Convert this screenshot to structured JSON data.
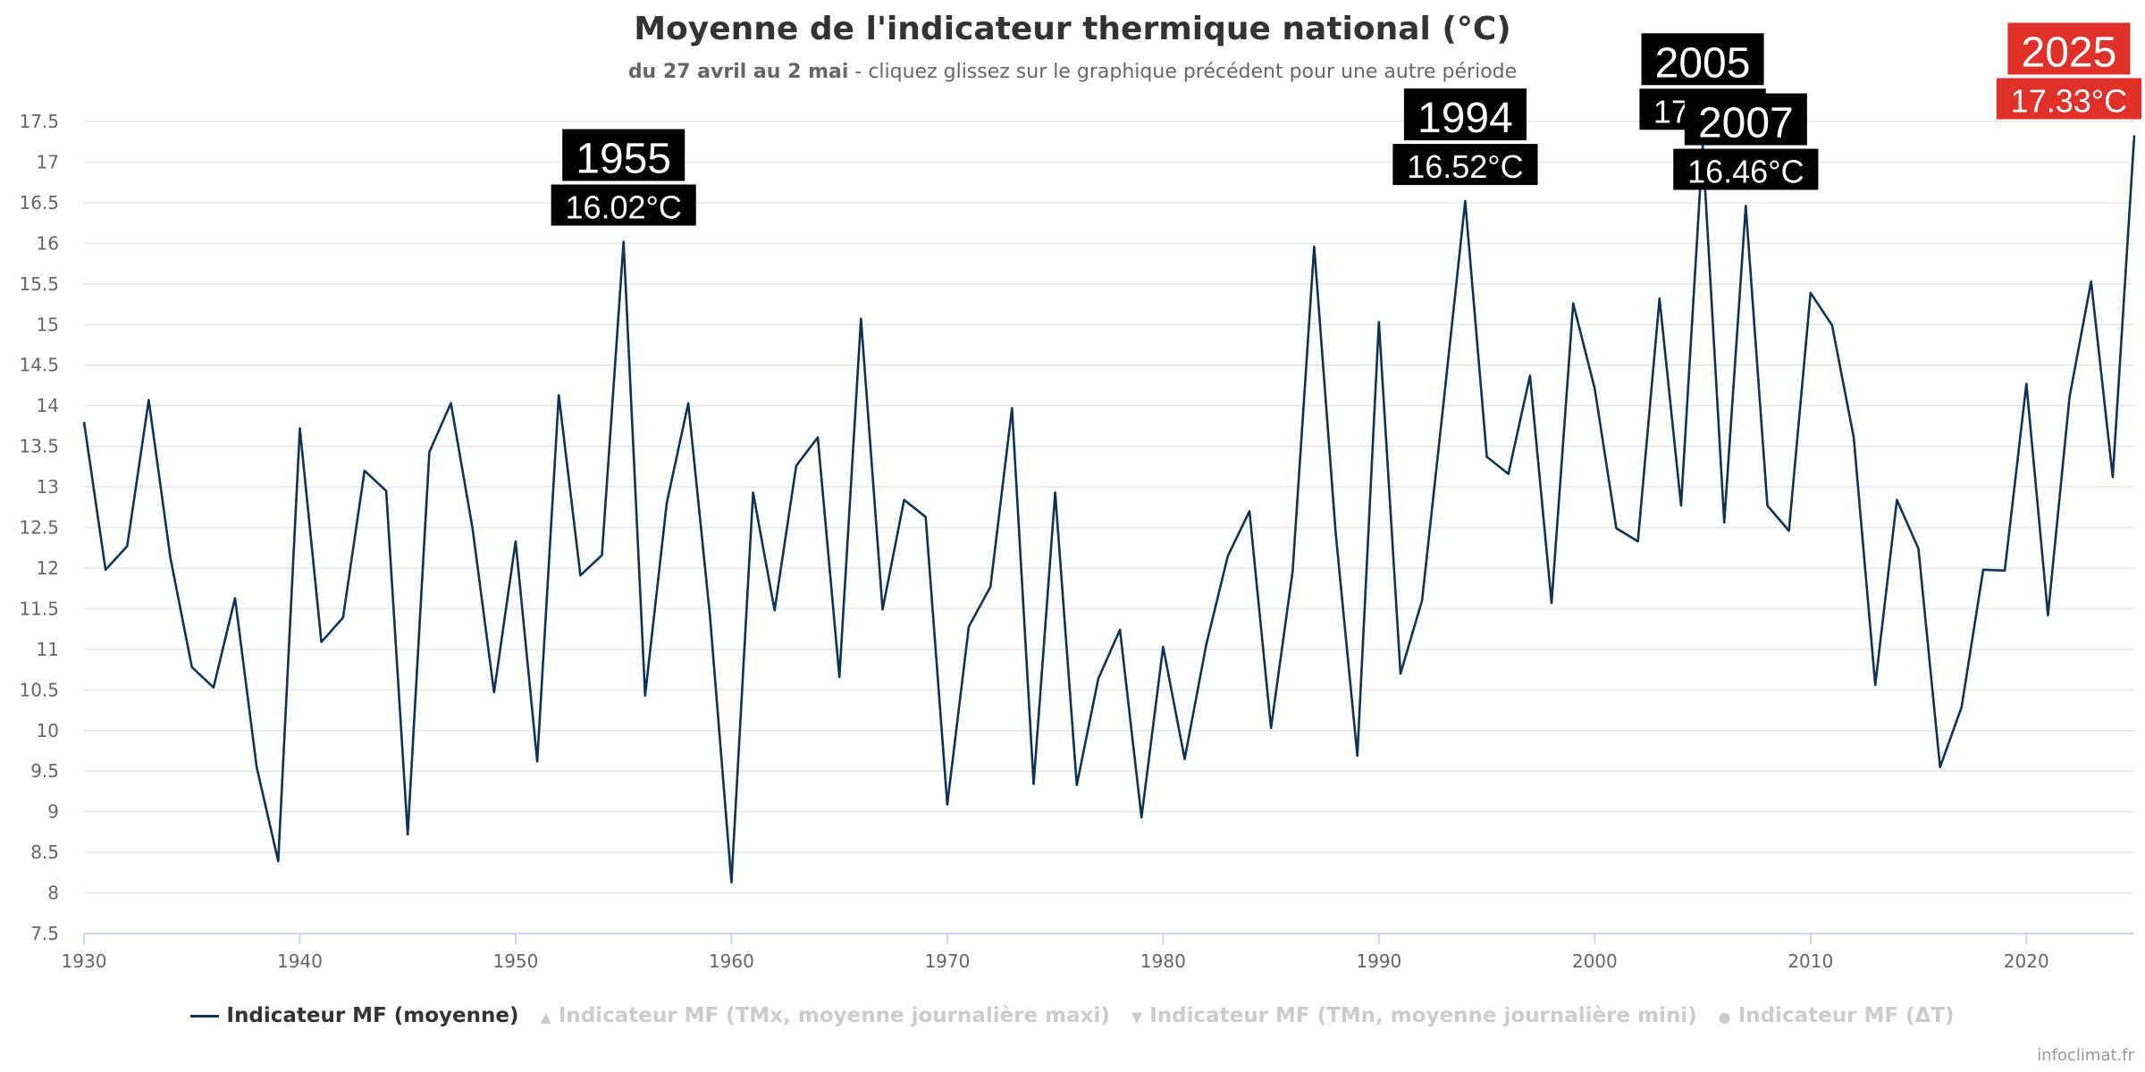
{
  "title": "Moyenne de l'indicateur thermique national (°C)",
  "subtitle": {
    "period": "du 27 avril au 2 mai",
    "hint": " - cliquez glissez sur le graphique précédent pour une autre période"
  },
  "legend": [
    {
      "label": "Indicateur MF (moyenne)",
      "symbol": "line-icon",
      "active": true
    },
    {
      "label": "Indicateur MF (TMx, moyenne journalière maxi)",
      "symbol": "triangle-up-icon",
      "active": false
    },
    {
      "label": "Indicateur MF (TMn, moyenne journalière mini)",
      "symbol": "triangle-down-icon",
      "active": false
    },
    {
      "label": "Indicateur MF (ΔT)",
      "symbol": "circle-icon",
      "active": false
    }
  ],
  "credits": "infoclimat.fr",
  "colors": {
    "series": "#0d3454",
    "annotation_bg": "#000000",
    "annotation_highlight_bg": "#e0302a",
    "annotation_text": "#ffffff",
    "grid": "#e6e6e6",
    "axis_text": "#666666"
  },
  "chart_data": {
    "type": "line",
    "x": [
      1930,
      1931,
      1932,
      1933,
      1934,
      1935,
      1936,
      1937,
      1938,
      1939,
      1940,
      1941,
      1942,
      1943,
      1944,
      1945,
      1946,
      1947,
      1948,
      1949,
      1950,
      1951,
      1952,
      1953,
      1954,
      1955,
      1956,
      1957,
      1958,
      1959,
      1960,
      1961,
      1962,
      1963,
      1964,
      1965,
      1966,
      1967,
      1968,
      1969,
      1970,
      1971,
      1972,
      1973,
      1974,
      1975,
      1976,
      1977,
      1978,
      1979,
      1980,
      1981,
      1982,
      1983,
      1984,
      1985,
      1986,
      1987,
      1988,
      1989,
      1990,
      1991,
      1992,
      1993,
      1994,
      1995,
      1996,
      1997,
      1998,
      1999,
      2000,
      2001,
      2002,
      2003,
      2004,
      2005,
      2006,
      2007,
      2008,
      2009,
      2010,
      2011,
      2012,
      2013,
      2014,
      2015,
      2016,
      2017,
      2018,
      2019,
      2020,
      2021,
      2022,
      2023,
      2024,
      2025
    ],
    "series": [
      {
        "name": "Indicateur MF (moyenne)",
        "values": [
          13.8,
          11.98,
          12.27,
          14.07,
          12.13,
          10.78,
          10.53,
          11.63,
          9.55,
          8.39,
          13.72,
          11.09,
          11.39,
          13.2,
          12.95,
          8.72,
          13.43,
          14.03,
          12.49,
          10.47,
          12.33,
          9.62,
          14.13,
          11.91,
          12.16,
          16.02,
          10.43,
          12.8,
          14.03,
          11.42,
          8.13,
          12.93,
          11.48,
          13.26,
          13.61,
          10.66,
          15.07,
          11.49,
          12.84,
          12.63,
          9.09,
          11.28,
          11.77,
          13.97,
          9.34,
          12.93,
          9.33,
          10.64,
          11.24,
          8.93,
          11.03,
          9.65,
          11.06,
          12.15,
          12.7,
          10.03,
          11.96,
          15.96,
          12.43,
          9.69,
          15.03,
          10.7,
          11.6,
          14.05,
          16.52,
          13.37,
          13.16,
          14.37,
          11.57,
          15.26,
          14.21,
          12.49,
          12.33,
          15.32,
          12.77,
          17.2,
          12.56,
          16.46,
          12.77,
          12.46,
          15.39,
          14.99,
          13.61,
          10.56,
          12.84,
          12.24,
          9.55,
          10.29,
          11.98,
          11.97,
          14.27,
          11.42,
          14.11,
          15.53,
          13.12,
          17.33
        ]
      }
    ],
    "xlim": [
      1930,
      2025
    ],
    "ylim": [
      7.5,
      17.5
    ],
    "xticks": [
      1930,
      1940,
      1950,
      1960,
      1970,
      1980,
      1990,
      2000,
      2010,
      2020
    ],
    "yticks": [
      7.5,
      8,
      8.5,
      9,
      9.5,
      10,
      10.5,
      11,
      11.5,
      12,
      12.5,
      13,
      13.5,
      14,
      14.5,
      15,
      15.5,
      16,
      16.5,
      17,
      17.5
    ],
    "annotations": [
      {
        "year": "1955",
        "value": "16.02°C",
        "highlight": false
      },
      {
        "year": "1994",
        "value": "16.52°C",
        "highlight": false
      },
      {
        "year": "2005",
        "value": "17.2°C",
        "highlight": false
      },
      {
        "year": "2007",
        "value": "16.46°C",
        "highlight": false
      },
      {
        "year": "2025",
        "value": "17.33°C",
        "highlight": true
      }
    ],
    "grid": true,
    "legend_position": "bottom"
  }
}
